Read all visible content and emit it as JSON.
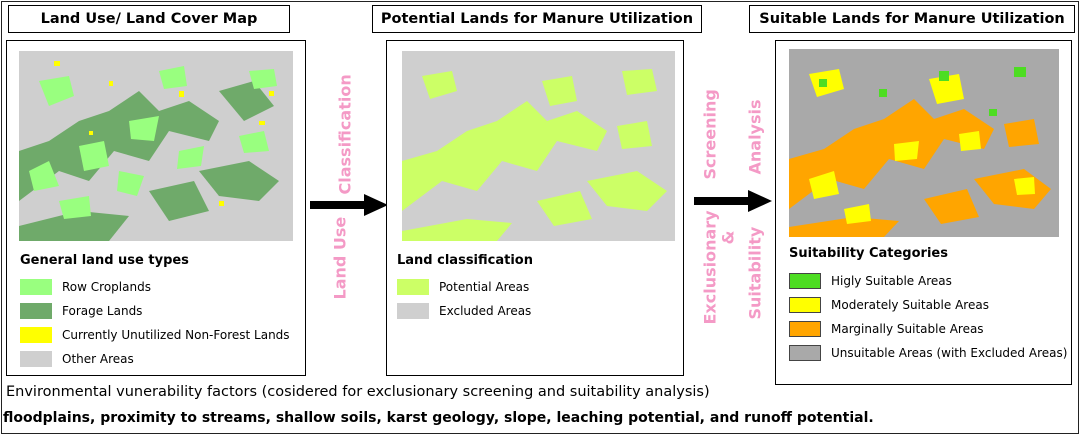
{
  "panels": [
    {
      "title": "Land Use/ Land Cover Map",
      "legend_title": "General land use types",
      "legend": [
        {
          "label": "Row Croplands",
          "color": "#99ff7f"
        },
        {
          "label": "Forage Lands",
          "color": "#6faa6a"
        },
        {
          "label": "Currently Unutilized Non-Forest Lands",
          "color": "#ffff00"
        },
        {
          "label": "Other Areas",
          "color": "#cfcfcf"
        }
      ]
    },
    {
      "title": "Potential Lands for Manure Utilization",
      "legend_title": "Land classification",
      "legend": [
        {
          "label": "Potential Areas",
          "color": "#ccff66"
        },
        {
          "label": "Excluded Areas",
          "color": "#cfcfcf"
        }
      ]
    },
    {
      "title": "Suitable Lands for Manure Utilization",
      "legend_title": "Suitability Categories",
      "legend": [
        {
          "label": "Higly Suitable Areas",
          "color": "#4ddd22"
        },
        {
          "label": "Moderately Suitable Areas",
          "color": "#ffff00"
        },
        {
          "label": "Marginally Suitable Areas",
          "color": "#ffa500"
        },
        {
          "label": "Unsuitable Areas (with Excluded Areas)",
          "color": "#a9a9a9"
        }
      ]
    }
  ],
  "arrows": {
    "first_line1": "Land Use",
    "first_line2": "Classification",
    "second_line1": "Exclusionary",
    "second_line2": "Screening",
    "second_line3": "&",
    "second_line4": "Suitability",
    "second_line5": "Analysis"
  },
  "footer": {
    "factors_title": "Environmental vunerability factors (cosidered for exclusionary screening and suitability analysis)",
    "factors_list": "floodplains, proximity to streams, shallow soils, karst geology, slope, leaching potential, and runoff potential."
  }
}
